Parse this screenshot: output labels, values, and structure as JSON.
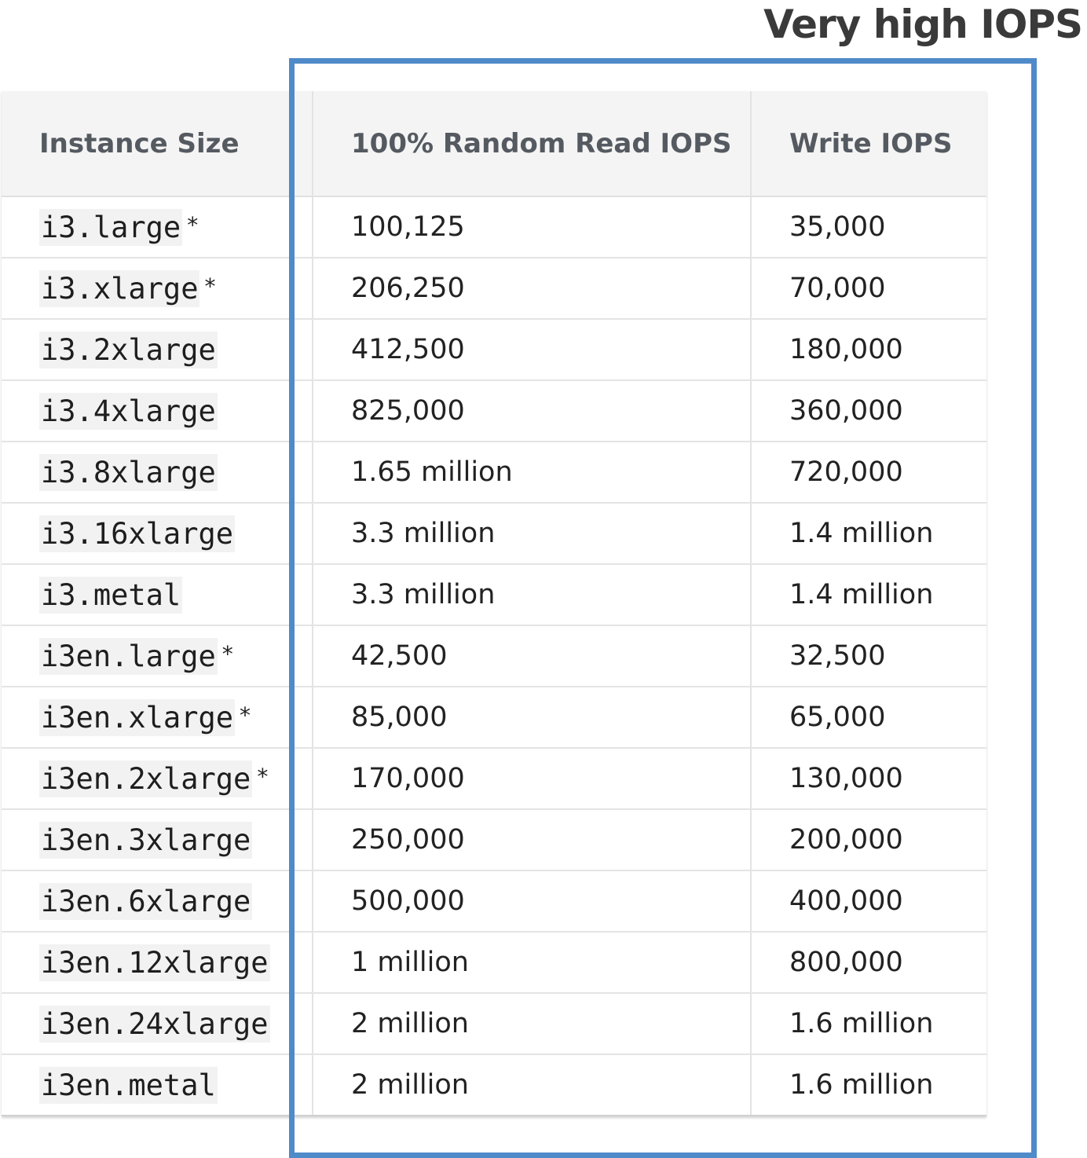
{
  "heading": "Very high IOPS",
  "columns": [
    "Instance Size",
    "100% Random Read IOPS",
    "Write IOPS"
  ],
  "rows": [
    {
      "instance": "i3.large",
      "marker": "*",
      "read": "100,125",
      "write": "35,000"
    },
    {
      "instance": "i3.xlarge",
      "marker": "*",
      "read": "206,250",
      "write": "70,000"
    },
    {
      "instance": "i3.2xlarge",
      "marker": "",
      "read": "412,500",
      "write": "180,000"
    },
    {
      "instance": "i3.4xlarge",
      "marker": "",
      "read": "825,000",
      "write": "360,000"
    },
    {
      "instance": "i3.8xlarge",
      "marker": "",
      "read": "1.65 million",
      "write": "720,000"
    },
    {
      "instance": "i3.16xlarge",
      "marker": "",
      "read": "3.3 million",
      "write": "1.4 million"
    },
    {
      "instance": "i3.metal",
      "marker": "",
      "read": "3.3 million",
      "write": "1.4 million"
    },
    {
      "instance": "i3en.large",
      "marker": "*",
      "read": "42,500",
      "write": "32,500"
    },
    {
      "instance": "i3en.xlarge",
      "marker": "*",
      "read": "85,000",
      "write": "65,000"
    },
    {
      "instance": "i3en.2xlarge",
      "marker": "*",
      "read": "170,000",
      "write": "130,000"
    },
    {
      "instance": "i3en.3xlarge",
      "marker": "",
      "read": "250,000",
      "write": "200,000"
    },
    {
      "instance": "i3en.6xlarge",
      "marker": "",
      "read": "500,000",
      "write": "400,000"
    },
    {
      "instance": "i3en.12xlarge",
      "marker": "",
      "read": "1 million",
      "write": "800,000"
    },
    {
      "instance": "i3en.24xlarge",
      "marker": "",
      "read": "2 million",
      "write": "1.6 million"
    },
    {
      "instance": "i3en.metal",
      "marker": "",
      "read": "2 million",
      "write": "1.6 million"
    }
  ],
  "colors": {
    "highlight_border": "#4f8ac9",
    "header_background": "#f4f4f4",
    "header_text": "#555a61",
    "code_background": "#f2f2f2"
  }
}
